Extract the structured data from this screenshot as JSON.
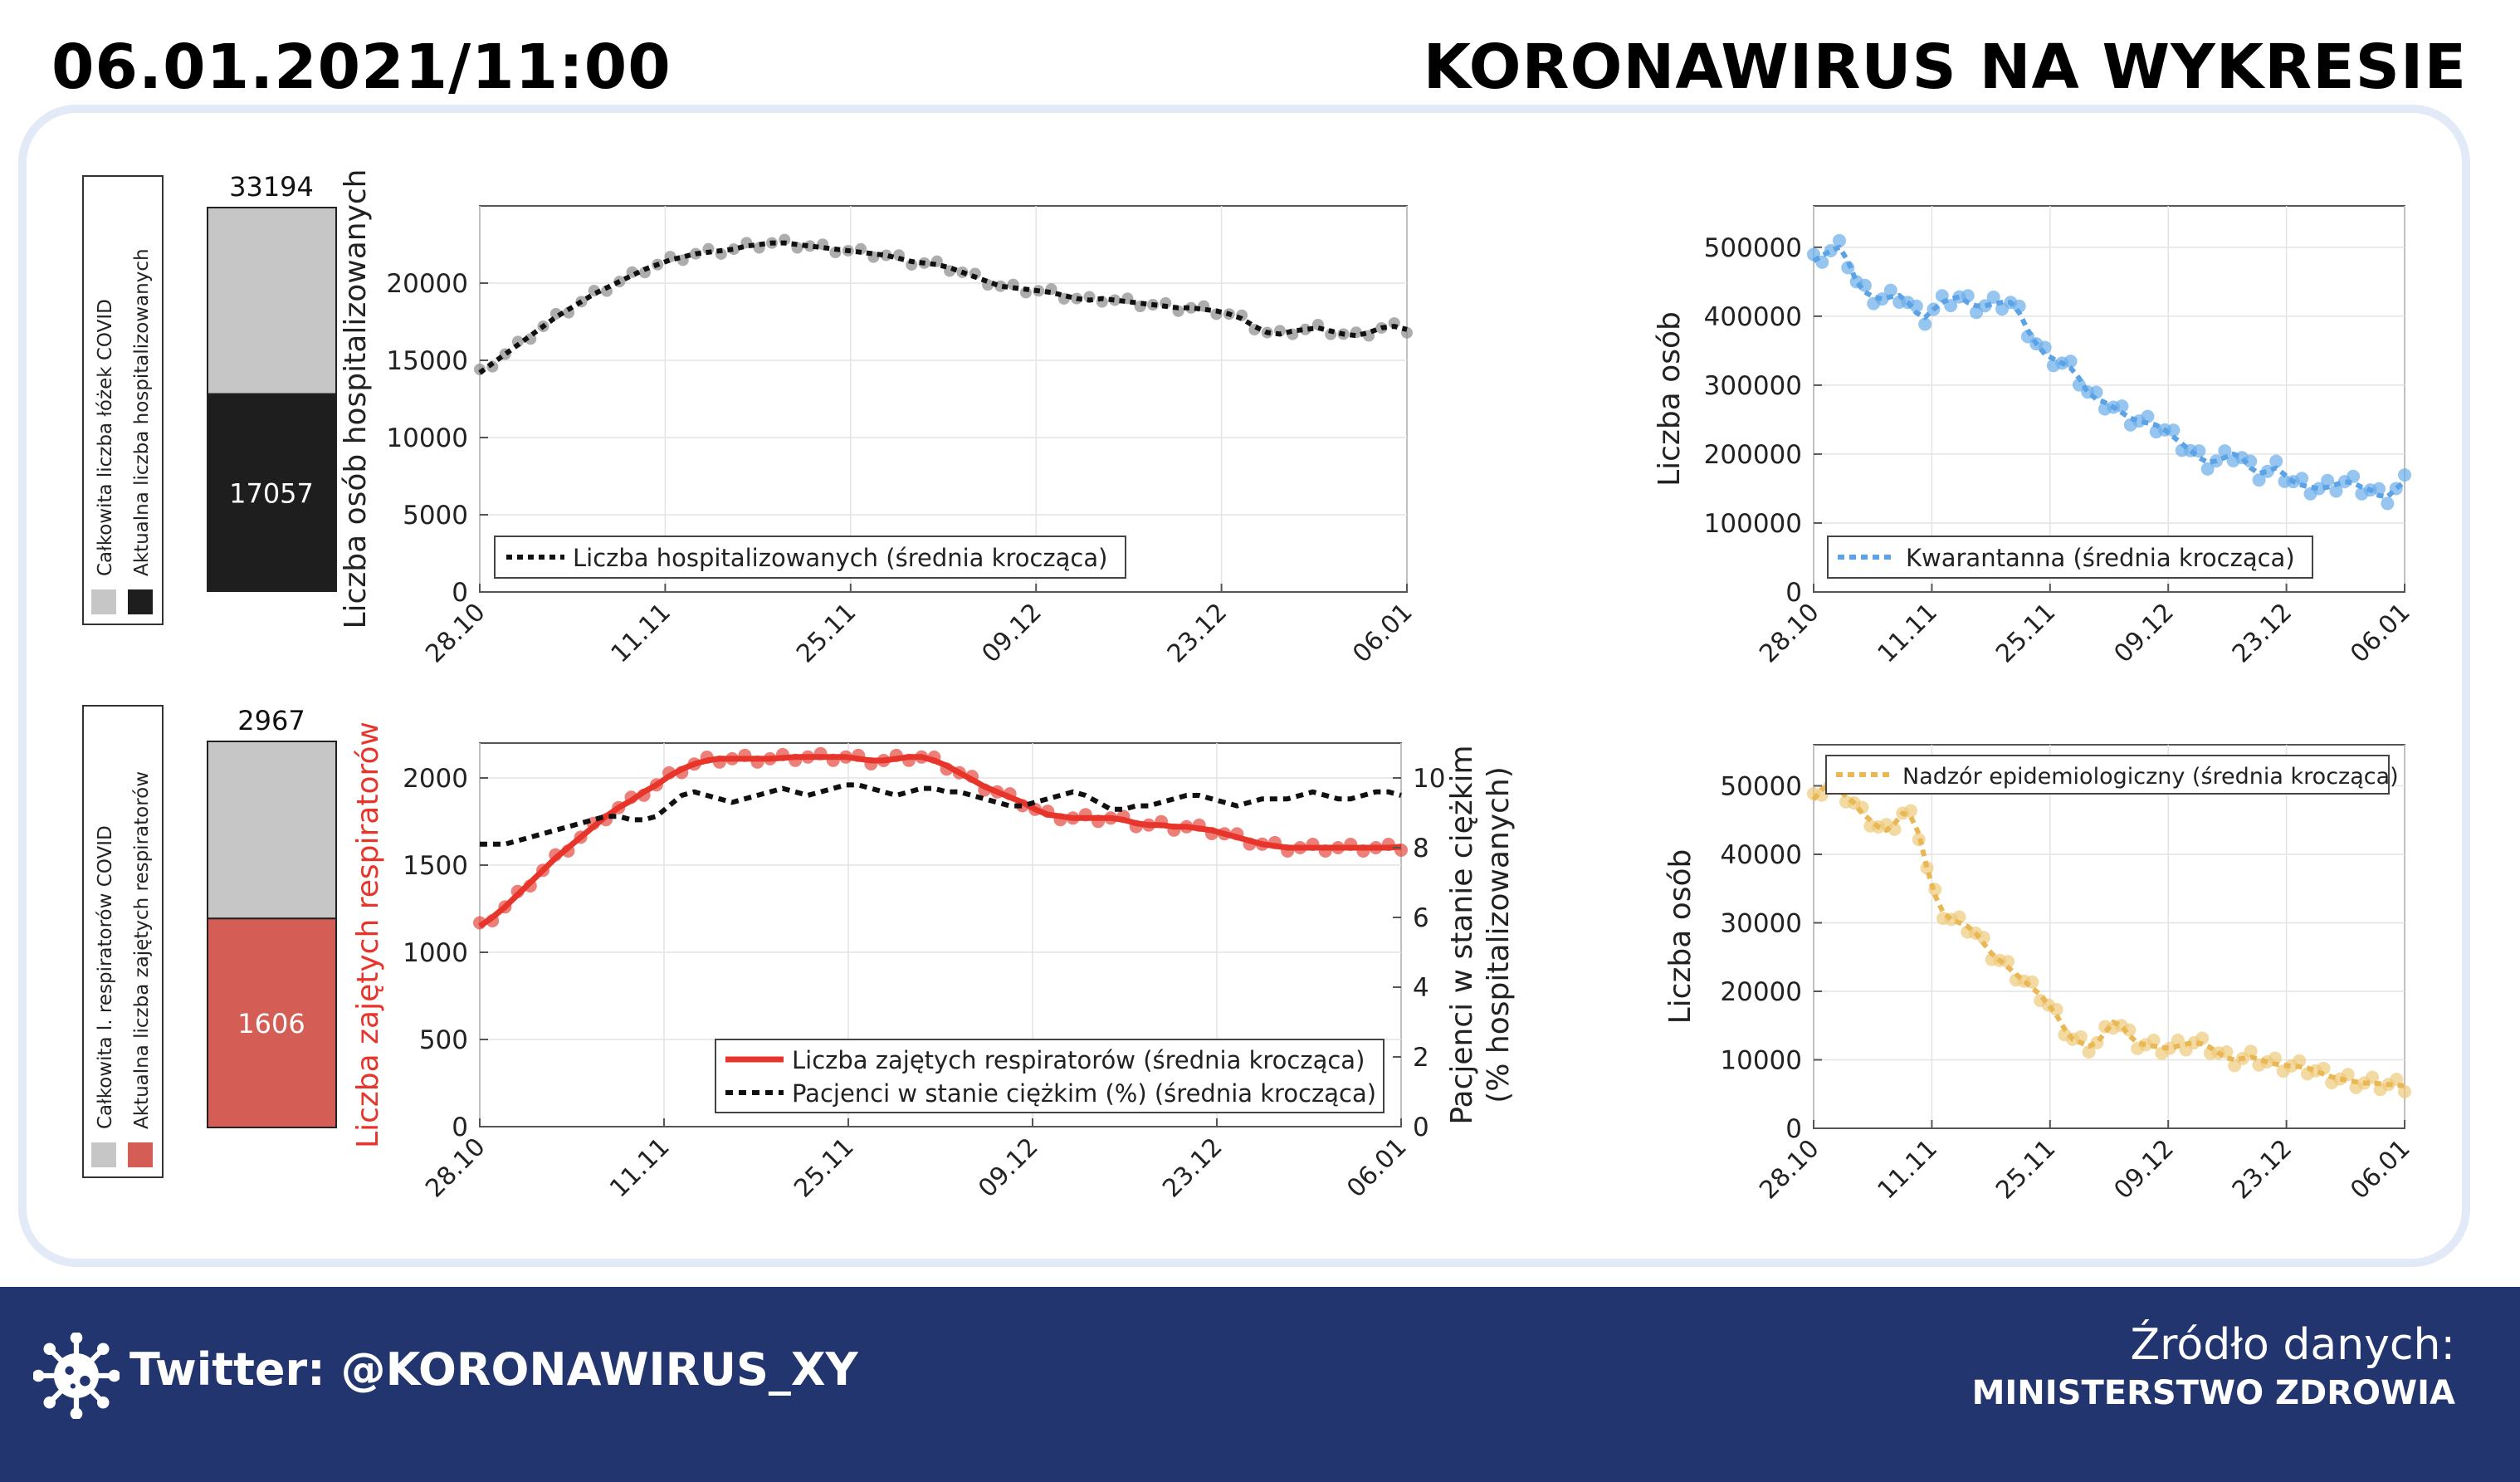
{
  "header": {
    "date": "06.01.2021/11:00",
    "title": "KORONAWIRUS NA WYKRESIE"
  },
  "footer": {
    "twitter": "Twitter: @KORONAWIRUS_XY",
    "source_label": "Źródło danych:",
    "source_name": "MINISTERSTWO ZDROWIA"
  },
  "colors": {
    "footer_bg": "#22356e",
    "panel_border": "#e2e9f7",
    "gray": "#c6c6c6",
    "dark": "#1e1e1e",
    "red": "#e8352c",
    "bar_red": "#d45d55",
    "blue": "#5ba2e6",
    "orange": "#e9b754"
  },
  "icons": {
    "footer_logo": "virus-icon"
  },
  "chart_data": [
    {
      "id": "beds_bar",
      "type": "bar",
      "total_label": "33194",
      "current_label": "17057",
      "total": 33194,
      "current": 17057,
      "legend": [
        "Całkowita liczba łóżek COVID",
        "Aktualna liczba hospitalizowanych"
      ]
    },
    {
      "id": "hosp",
      "type": "line",
      "x_ticks": [
        "28.10",
        "11.11",
        "25.11",
        "09.12",
        "23.12",
        "06.01"
      ],
      "y_ticks": [
        "0",
        "5000",
        "10000",
        "15000",
        "20000"
      ],
      "ylim": [
        0,
        25000
      ],
      "ylabel": "Liczba osób hospitalizowanych",
      "legend": "Liczba hospitalizowanych (średnia krocząca)",
      "series": [
        {
          "name": "Liczba hospitalizowanych (średnia krocząca)",
          "values": [
            14200,
            14800,
            15400,
            16000,
            16600,
            17200,
            17800,
            18300,
            18800,
            19300,
            19700,
            20100,
            20500,
            20900,
            21200,
            21500,
            21700,
            21900,
            22000,
            22100,
            22200,
            22400,
            22500,
            22600,
            22600,
            22500,
            22400,
            22300,
            22200,
            22100,
            22000,
            21900,
            21800,
            21600,
            21400,
            21300,
            21200,
            21000,
            20700,
            20400,
            20100,
            19800,
            19700,
            19600,
            19500,
            19400,
            19200,
            19000,
            18900,
            19000,
            18900,
            18800,
            18700,
            18600,
            18500,
            18400,
            18400,
            18300,
            18200,
            18000,
            17700,
            17200,
            16800,
            16700,
            16900,
            17000,
            17100,
            16900,
            16700,
            16600,
            16800,
            17100,
            17200,
            17000
          ]
        }
      ]
    },
    {
      "id": "resp_bar",
      "type": "bar",
      "total_label": "2967",
      "current_label": "1606",
      "total": 2967,
      "current": 1606,
      "legend": [
        "Całkowita l. respiratorów COVID",
        "Aktualna liczba zajętych respiratorów"
      ]
    },
    {
      "id": "resp",
      "type": "line",
      "x_ticks": [
        "28.10",
        "11.11",
        "25.11",
        "09.12",
        "23.12",
        "06.01"
      ],
      "y_ticks": [
        "0",
        "500",
        "1000",
        "1500",
        "2000"
      ],
      "ylim": [
        0,
        2200
      ],
      "ylabel": "Liczba zajętych respiratorów",
      "y2_ticks": [
        "0",
        "2",
        "4",
        "6",
        "8",
        "10"
      ],
      "y2lim": [
        0,
        11
      ],
      "y2label": [
        "Pacjenci w stanie ciężkim",
        "(% hospitalizowanych)"
      ],
      "legend": [
        "Liczba zajętych respiratorów (średnia krocząca)",
        "Pacjenci w stanie ciężkim (%) (średnia krocząca)"
      ],
      "series": [
        {
          "name": "Liczba zajętych respiratorów (średnia krocząca)",
          "axis": "left",
          "values": [
            1150,
            1200,
            1260,
            1330,
            1400,
            1470,
            1540,
            1600,
            1660,
            1720,
            1780,
            1830,
            1870,
            1920,
            1960,
            2010,
            2050,
            2080,
            2100,
            2110,
            2110,
            2110,
            2110,
            2110,
            2115,
            2120,
            2120,
            2120,
            2120,
            2120,
            2110,
            2100,
            2100,
            2110,
            2120,
            2120,
            2100,
            2070,
            2030,
            1990,
            1950,
            1920,
            1890,
            1860,
            1820,
            1790,
            1780,
            1770,
            1770,
            1770,
            1770,
            1760,
            1740,
            1730,
            1730,
            1720,
            1720,
            1710,
            1700,
            1680,
            1660,
            1640,
            1620,
            1610,
            1600,
            1600,
            1600,
            1600,
            1600,
            1600,
            1600,
            1600,
            1600,
            1605
          ]
        },
        {
          "name": "Pacjenci w stanie ciężkim (%) (średnia krocząca)",
          "axis": "right",
          "values": [
            8.1,
            8.1,
            8.1,
            8.2,
            8.3,
            8.4,
            8.5,
            8.6,
            8.7,
            8.8,
            8.9,
            8.9,
            8.8,
            8.8,
            8.9,
            9.2,
            9.5,
            9.6,
            9.5,
            9.4,
            9.3,
            9.4,
            9.5,
            9.6,
            9.7,
            9.6,
            9.5,
            9.6,
            9.7,
            9.8,
            9.8,
            9.7,
            9.6,
            9.5,
            9.6,
            9.7,
            9.7,
            9.6,
            9.6,
            9.5,
            9.4,
            9.3,
            9.2,
            9.2,
            9.3,
            9.4,
            9.5,
            9.6,
            9.5,
            9.3,
            9.1,
            9.1,
            9.2,
            9.2,
            9.3,
            9.4,
            9.5,
            9.5,
            9.4,
            9.3,
            9.2,
            9.3,
            9.4,
            9.4,
            9.4,
            9.5,
            9.6,
            9.5,
            9.4,
            9.4,
            9.5,
            9.6,
            9.6,
            9.5
          ]
        }
      ]
    },
    {
      "id": "quar",
      "type": "line",
      "x_ticks": [
        "28.10",
        "11.11",
        "25.11",
        "09.12",
        "23.12",
        "06.01"
      ],
      "y_ticks": [
        "0",
        "100000",
        "200000",
        "300000",
        "400000",
        "500000"
      ],
      "ylim": [
        0,
        560000
      ],
      "ylabel": "Liczba osób",
      "legend": "Kwarantanna (średnia krocząca)",
      "series": [
        {
          "name": "Kwarantanna (średnia krocząca)",
          "values": [
            480000,
            488000,
            495000,
            500000,
            480000,
            450000,
            435000,
            428000,
            425000,
            428000,
            430000,
            420000,
            405000,
            398000,
            410000,
            420000,
            425000,
            428000,
            420000,
            415000,
            415000,
            418000,
            420000,
            420000,
            405000,
            380000,
            360000,
            345000,
            338000,
            332000,
            325000,
            310000,
            290000,
            280000,
            275000,
            268000,
            260000,
            252000,
            248000,
            245000,
            242000,
            235000,
            225000,
            215000,
            205000,
            195000,
            188000,
            190000,
            195000,
            200000,
            195000,
            180000,
            172000,
            175000,
            180000,
            170000,
            160000,
            155000,
            152000,
            150000,
            152000,
            156000,
            160000,
            158000,
            152000,
            148000,
            140000,
            138000,
            150000,
            160000
          ]
        }
      ]
    },
    {
      "id": "epid",
      "type": "line",
      "x_ticks": [
        "28.10",
        "11.11",
        "25.11",
        "09.12",
        "23.12",
        "06.01"
      ],
      "y_ticks": [
        "0",
        "10000",
        "20000",
        "30000",
        "40000",
        "50000"
      ],
      "ylim": [
        0,
        56000
      ],
      "ylabel": "Liczba osób",
      "legend": "Nadzór epidemiologiczny (średnia krocząca)",
      "series": [
        {
          "name": "Nadzór epidemiologiczny (średnia krocząca)",
          "values": [
            48000,
            49500,
            50000,
            49500,
            48500,
            47500,
            46000,
            45000,
            44000,
            43500,
            44500,
            46000,
            45500,
            43000,
            38000,
            34000,
            31500,
            30500,
            30000,
            29500,
            28500,
            27000,
            25500,
            24500,
            23500,
            22500,
            21500,
            20500,
            19500,
            18000,
            16500,
            14500,
            13000,
            12500,
            12000,
            12500,
            14000,
            15500,
            15000,
            13500,
            12500,
            12200,
            12000,
            11800,
            11700,
            12000,
            12300,
            12500,
            12300,
            11800,
            11000,
            10300,
            10000,
            10200,
            10400,
            10100,
            9700,
            9400,
            9200,
            9100,
            9000,
            8800,
            8400,
            7900,
            7500,
            7200,
            7000,
            6800,
            6600,
            6600,
            6500,
            6400,
            6300,
            6200
          ]
        }
      ]
    }
  ]
}
